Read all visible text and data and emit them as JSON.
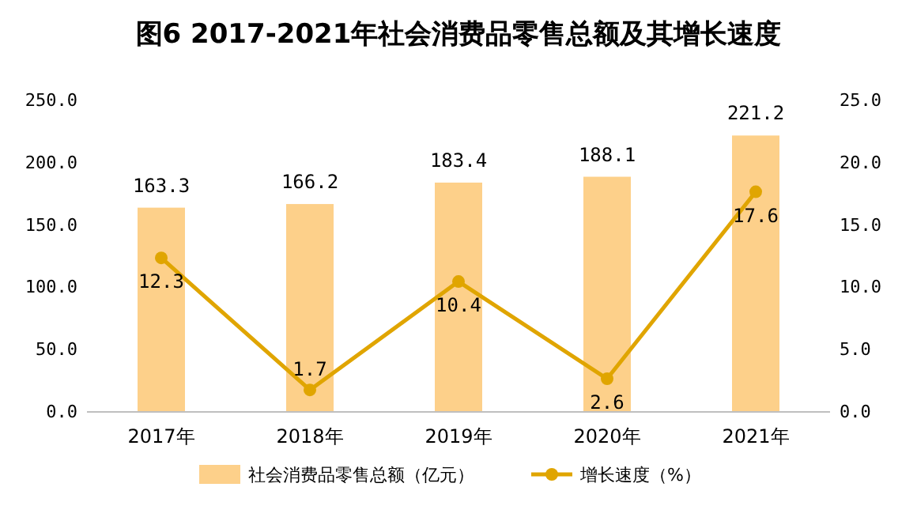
{
  "chart_data": {
    "type": "bar",
    "title": "图6  2017-2021年社会消费品零售总额及其增长速度",
    "categories": [
      "2017年",
      "2018年",
      "2019年",
      "2020年",
      "2021年"
    ],
    "series": [
      {
        "name": "社会消费品零售总额（亿元）",
        "color": "#fdd08a",
        "values": [
          163.3,
          166.2,
          183.4,
          188.1,
          221.2
        ]
      },
      {
        "name": "增长速度（%）",
        "type": "line",
        "axis": "y2",
        "color": "#e0a500",
        "marker": "circle",
        "values": [
          12.3,
          1.7,
          10.4,
          2.6,
          17.6
        ]
      }
    ],
    "ylim": [
      0,
      250
    ],
    "yticks": [
      {
        "value": 0,
        "label": "0.0"
      },
      {
        "value": 50,
        "label": "50.0"
      },
      {
        "value": 100,
        "label": "100.0"
      },
      {
        "value": 150,
        "label": "150.0"
      },
      {
        "value": 200,
        "label": "200.0"
      },
      {
        "value": 250,
        "label": "250.0"
      }
    ],
    "y2lim": [
      0,
      25
    ],
    "y2ticks": [
      {
        "value": 0,
        "label": "0.0"
      },
      {
        "value": 5,
        "label": "5.0"
      },
      {
        "value": 10,
        "label": "10.0"
      },
      {
        "value": 15,
        "label": "15.0"
      },
      {
        "value": 20,
        "label": "20.0"
      },
      {
        "value": 25,
        "label": "25.0"
      }
    ],
    "data_labels": true,
    "legend": "bottom",
    "grid": false
  }
}
